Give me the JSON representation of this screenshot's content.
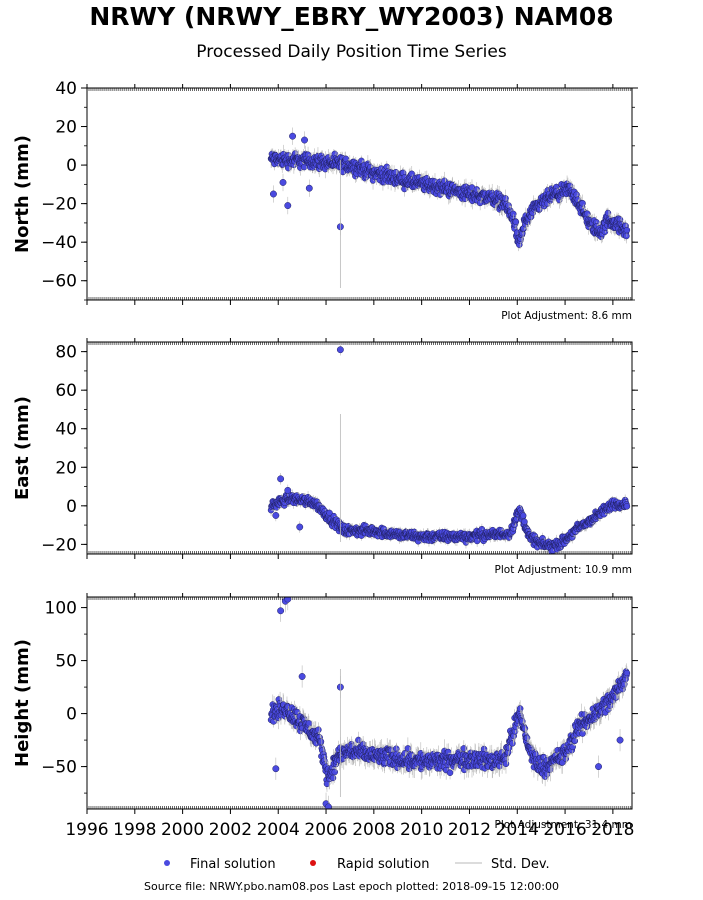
{
  "title": "NRWY (NRWY_EBRY_WY2003) NAM08",
  "subtitle": "Processed Daily Position Time Series",
  "source_note": "Source file: NRWY.pbo.nam08.pos  Last epoch plotted: 2018-09-15 12:00:00",
  "legend": {
    "final": "Final solution",
    "rapid": "Rapid solution",
    "std": "Std. Dev."
  },
  "colors": {
    "final": "#4a4ae0",
    "final_edge": "#1f1f60",
    "rapid": "#dd1111",
    "std": "#b8b8b8"
  },
  "chart_data": [
    {
      "type": "scatter",
      "ylabel": "North (mm)",
      "adjustment": "Plot Adjustment: 8.6 mm",
      "xlim": [
        1996,
        2018.8
      ],
      "ylim": [
        -70,
        40
      ],
      "yticks": [
        40,
        20,
        0,
        -20,
        -40,
        -60
      ],
      "trend": [
        [
          2003.7,
          3
        ],
        [
          2005.5,
          2
        ],
        [
          2007,
          0
        ],
        [
          2008,
          -4
        ],
        [
          2009,
          -7
        ],
        [
          2010,
          -10
        ],
        [
          2011,
          -12
        ],
        [
          2012,
          -15
        ],
        [
          2013,
          -17
        ],
        [
          2013.5,
          -20
        ],
        [
          2013.9,
          -30
        ],
        [
          2014.05,
          -42
        ],
        [
          2014.3,
          -30
        ],
        [
          2014.8,
          -22
        ],
        [
          2015.4,
          -16
        ],
        [
          2016,
          -14
        ],
        [
          2016.1,
          -12
        ],
        [
          2016.5,
          -18
        ],
        [
          2017,
          -30
        ],
        [
          2017.5,
          -35
        ],
        [
          2017.8,
          -28
        ],
        [
          2018.1,
          -30
        ],
        [
          2018.6,
          -35
        ]
      ],
      "scatter_amp": 3,
      "outliers": [
        [
          2004.6,
          15
        ],
        [
          2004.4,
          -21
        ],
        [
          2005.1,
          13
        ],
        [
          2006.6,
          -32
        ],
        [
          2003.8,
          -15
        ],
        [
          2004.2,
          -9
        ],
        [
          2005.3,
          -12
        ]
      ]
    },
    {
      "type": "scatter",
      "ylabel": "East (mm)",
      "adjustment": "Plot Adjustment: 10.9 mm",
      "xlim": [
        1996,
        2018.8
      ],
      "ylim": [
        -25,
        85
      ],
      "yticks": [
        80,
        60,
        40,
        20,
        0,
        -20
      ],
      "trend": [
        [
          2003.7,
          0
        ],
        [
          2004.5,
          4
        ],
        [
          2005.5,
          2
        ],
        [
          2006.3,
          -8
        ],
        [
          2006.8,
          -13
        ],
        [
          2008,
          -13
        ],
        [
          2009,
          -15
        ],
        [
          2010,
          -16
        ],
        [
          2011,
          -16
        ],
        [
          2012,
          -16
        ],
        [
          2012.5,
          -15
        ],
        [
          2013.1,
          -15
        ],
        [
          2013.7,
          -14
        ],
        [
          2014.1,
          -2
        ],
        [
          2014.5,
          -16
        ],
        [
          2015,
          -20
        ],
        [
          2015.5,
          -21
        ],
        [
          2016,
          -18
        ],
        [
          2016.5,
          -12
        ],
        [
          2017,
          -8
        ],
        [
          2017.6,
          -3
        ],
        [
          2018,
          1
        ],
        [
          2018.6,
          1
        ]
      ],
      "scatter_amp": 2,
      "outliers": [
        [
          2006.6,
          81
        ],
        [
          2004.1,
          14
        ],
        [
          2004.9,
          -11
        ],
        [
          2004.4,
          8
        ],
        [
          2003.9,
          -5
        ]
      ]
    },
    {
      "type": "scatter",
      "ylabel": "Height (mm)",
      "adjustment": "Plot Adjustment: 31.4 mm",
      "xlim": [
        1996,
        2018.8
      ],
      "ylim": [
        -90,
        110
      ],
      "yticks": [
        100,
        50,
        0,
        -50
      ],
      "trend": [
        [
          2003.7,
          0
        ],
        [
          2004.3,
          5
        ],
        [
          2004.8,
          -5
        ],
        [
          2005.3,
          -15
        ],
        [
          2005.7,
          -25
        ],
        [
          2006.1,
          -60
        ],
        [
          2006.5,
          -40
        ],
        [
          2007,
          -35
        ],
        [
          2008,
          -40
        ],
        [
          2009,
          -42
        ],
        [
          2010,
          -45
        ],
        [
          2011,
          -45
        ],
        [
          2012,
          -42
        ],
        [
          2013,
          -45
        ],
        [
          2013.5,
          -40
        ],
        [
          2014.1,
          0
        ],
        [
          2014.6,
          -40
        ],
        [
          2015,
          -50
        ],
        [
          2015.6,
          -45
        ],
        [
          2016.1,
          -35
        ],
        [
          2016.5,
          -15
        ],
        [
          2017,
          -5
        ],
        [
          2017.5,
          5
        ],
        [
          2018,
          15
        ],
        [
          2018.6,
          38
        ]
      ],
      "scatter_amp": 7,
      "outliers": [
        [
          2004.1,
          97
        ],
        [
          2004.3,
          106
        ],
        [
          2004.4,
          108
        ],
        [
          2006.6,
          25
        ],
        [
          2006.0,
          -85
        ],
        [
          2006.1,
          -88
        ],
        [
          2003.9,
          -52
        ],
        [
          2005.0,
          35
        ],
        [
          2017.4,
          -50
        ],
        [
          2018.3,
          -25
        ]
      ]
    }
  ],
  "x_ticks": [
    1996,
    1998,
    2000,
    2002,
    2004,
    2006,
    2008,
    2010,
    2012,
    2014,
    2016,
    2018
  ],
  "x_tick_labels": [
    "1996",
    "1998",
    "2000",
    "2002",
    "2004",
    "2006",
    "2008",
    "2010",
    "2012",
    "2014",
    "2016",
    "2018"
  ]
}
